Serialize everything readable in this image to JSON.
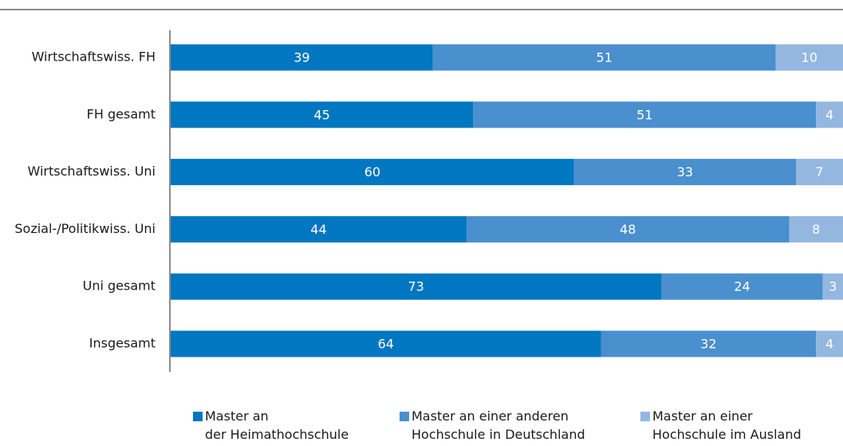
{
  "chart_data": {
    "type": "stacked_barh",
    "categories": [
      "Wirtschaftswiss. FH",
      "FH gesamt",
      "Wirtschaftswiss. Uni",
      "Sozial-/Politikwiss. Uni",
      "Uni gesamt",
      "Insgesamt"
    ],
    "series": [
      {
        "name": "Master an\nder Heimathochschule",
        "color": "#0077c0",
        "values": [
          39,
          45,
          60,
          44,
          73,
          64
        ]
      },
      {
        "name": "Master an einer anderen\nHochschule in Deutschland",
        "color": "#4a8fce",
        "values": [
          51,
          51,
          33,
          48,
          24,
          32
        ]
      },
      {
        "name": "Master an einer\nHochschule im Ausland",
        "color": "#94b7e0",
        "values": [
          10,
          4,
          7,
          8,
          3,
          4
        ]
      }
    ],
    "xlim": [
      0,
      100
    ]
  }
}
